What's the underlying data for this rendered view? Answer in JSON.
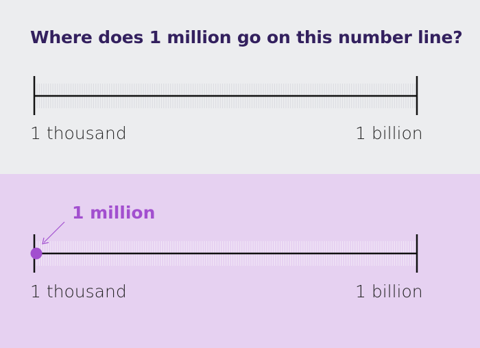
{
  "question": {
    "title": "Where does 1 million go on this number line?",
    "left_label": "1 thousand",
    "right_label": "1 billion"
  },
  "answer": {
    "marker_label": "1 million",
    "left_label": "1 thousand",
    "right_label": "1 billion",
    "scale": {
      "min": 1000,
      "max": 1000000000,
      "marker_value": 1000000
    }
  },
  "colors": {
    "title": "#33205e",
    "accent": "#a24fcf",
    "top_bg": "#ecedef",
    "bottom_bg": "#e6d1f1"
  }
}
